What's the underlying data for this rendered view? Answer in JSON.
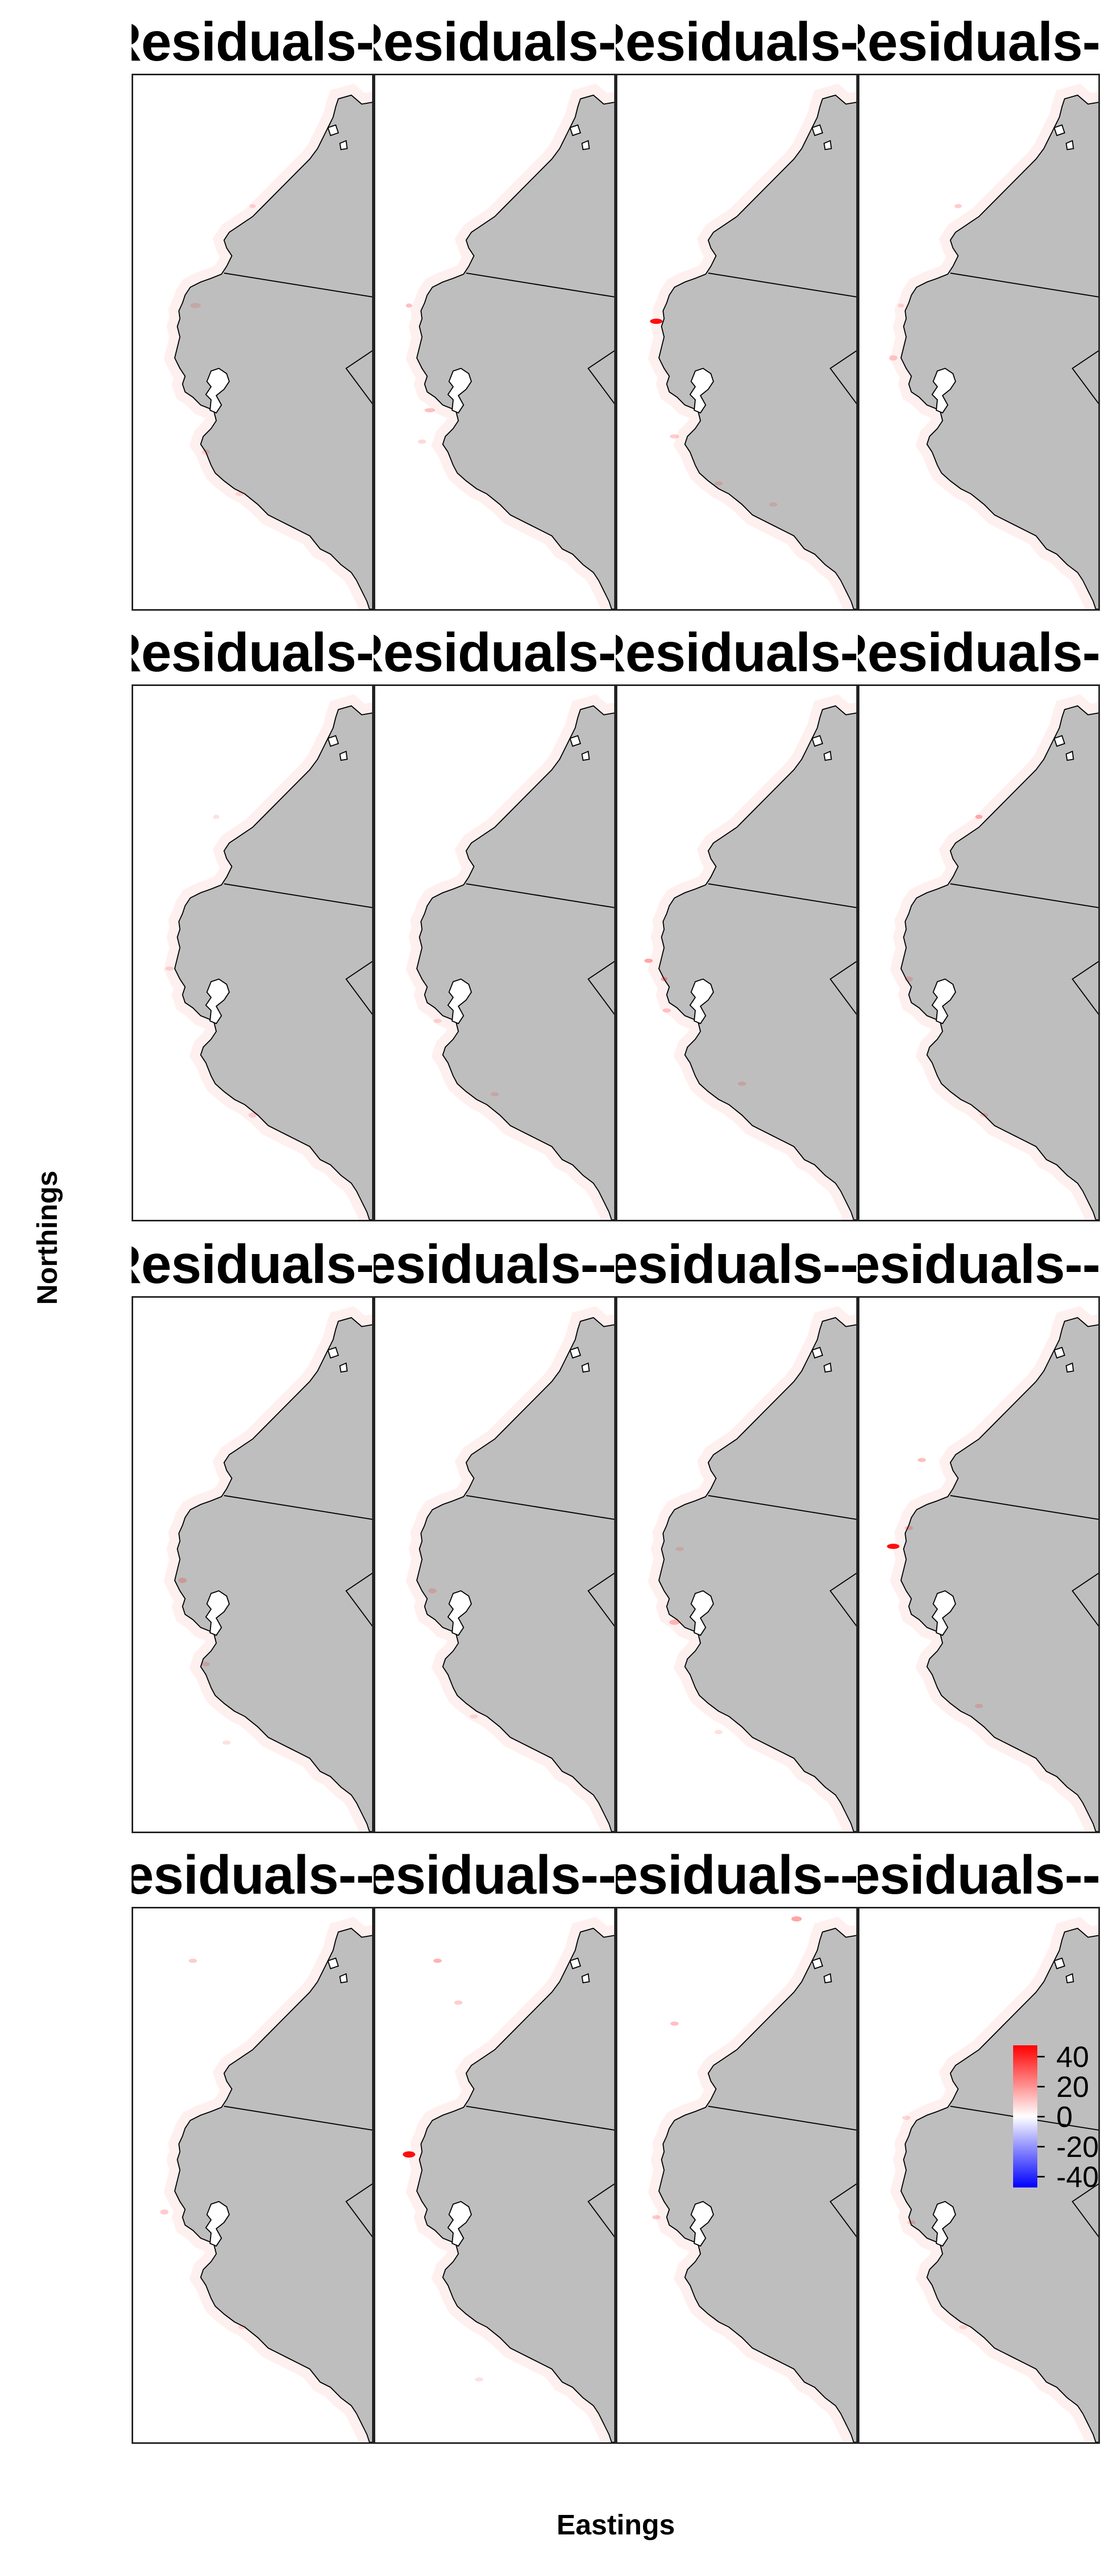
{
  "facet_titles": [
    "Residuals-",
    "Residuals-",
    "Residuals-",
    "Residuals-",
    "Residuals-",
    "Residuals-",
    "Residuals-",
    "Residuals-",
    "Residuals-",
    "Residuals--",
    "Residuals--",
    "Residuals--",
    "Residuals--",
    "Residuals--",
    "Residuals--",
    "Residuals--"
  ],
  "axes": {
    "x_label": "Eastings",
    "y_label": "Northings"
  },
  "legend": {
    "colors": {
      "high": "#ff0000",
      "mid": "#ffffff",
      "low": "#0000ff"
    },
    "ticks": [
      "40",
      "20",
      "0",
      "-20",
      "-40"
    ]
  },
  "map": {
    "land_color": "#bebebe",
    "coast_color": "#000000",
    "residual_color": "#ff0000"
  }
}
